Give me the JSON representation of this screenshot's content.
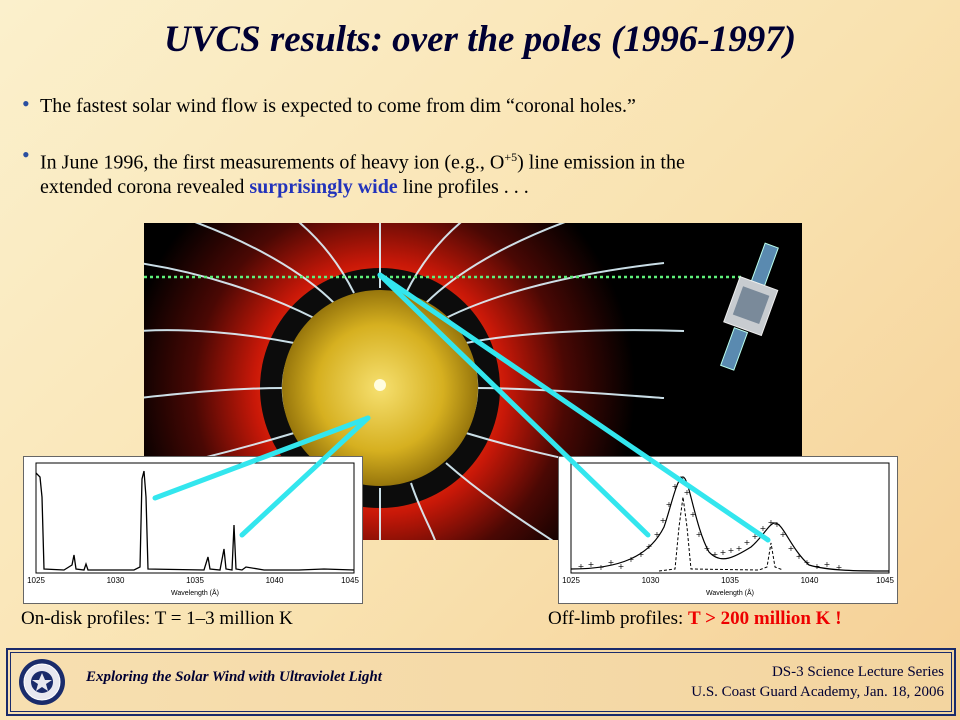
{
  "title": "UVCS results:  over the poles (1996-1997)",
  "bullets": {
    "b1": "The fastest solar wind flow is expected to come from dim “coronal holes.”",
    "b2_pre": "In June 1996, the first measurements of heavy ion (e.g., O",
    "b2_sup": "+5",
    "b2_mid": ") line emission in the",
    "b2_line2_pre": "extended corona revealed ",
    "b2_highlight": "surprisingly wide",
    "b2_line2_post": " line profiles . . ."
  },
  "captions": {
    "left": "On-disk profiles: T = 1–3 million K",
    "right_pre": "Off-limb profiles: ",
    "right_highlight": "T > 200 million K !"
  },
  "plot_left": {
    "x_ticks": [
      "1025",
      "1030",
      "1035",
      "1040",
      "1045"
    ],
    "xlabel": "Wavelength (Å)"
  },
  "plot_right": {
    "x_ticks": [
      "1025",
      "1030",
      "1035",
      "1040",
      "1045"
    ],
    "xlabel": "Wavelength (Å)"
  },
  "footer": {
    "left": "Exploring the Solar Wind with Ultraviolet Light",
    "right_line1": "DS-3 Science Lecture Series",
    "right_line2": "U.S. Coast Guard Academy, Jan. 18, 2006"
  },
  "colors": {
    "title": "#000033",
    "highlight_blue": "#2233bb",
    "highlight_red": "#ee0000",
    "cyan_lines": "#33e6ee"
  }
}
